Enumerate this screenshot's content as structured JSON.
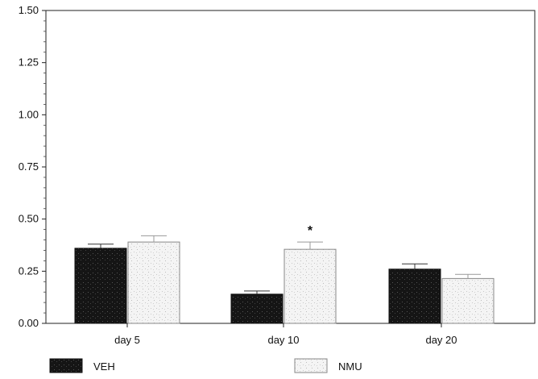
{
  "chart_data": {
    "type": "bar",
    "categories": [
      "day 5",
      "day 10",
      "day 20"
    ],
    "series": [
      {
        "name": "VEH",
        "values": [
          0.36,
          0.14,
          0.26
        ],
        "errors": [
          0.02,
          0.015,
          0.025
        ],
        "color": "#111111"
      },
      {
        "name": "NMU",
        "values": [
          0.39,
          0.355,
          0.215
        ],
        "errors": [
          0.03,
          0.035,
          0.02
        ],
        "color": "#f2f2f2"
      }
    ],
    "ylim": [
      0,
      1.5
    ],
    "yticks": [
      "0.00",
      "0.25",
      "0.50",
      "0.75",
      "1.00",
      "1.25",
      "1.50"
    ],
    "annotations": [
      {
        "category": "day 10",
        "series": "NMU",
        "text": "*"
      }
    ],
    "legend_position": "bottom",
    "grid": false
  }
}
